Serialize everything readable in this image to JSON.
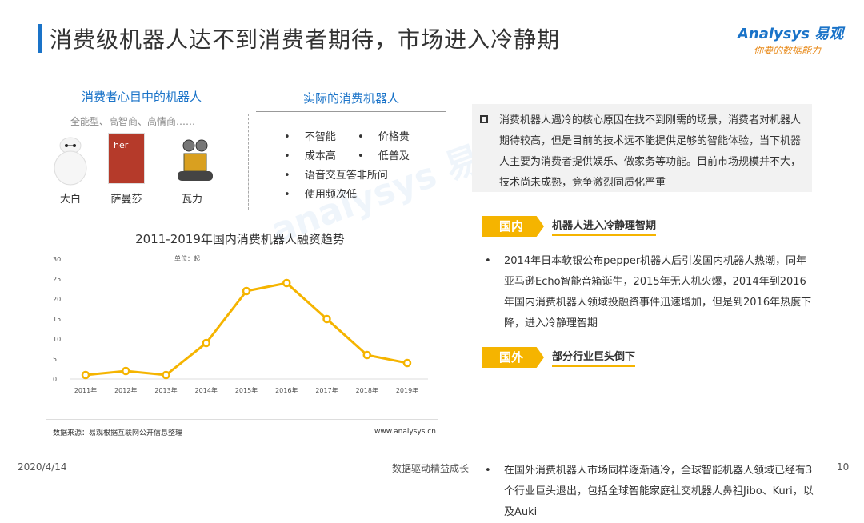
{
  "header": {
    "title": "消费级机器人达不到消费者期待，市场进入冷静期",
    "logo_line1": "Analysys 易观",
    "logo_line2": "你要的数据能力"
  },
  "left": {
    "ideal_heading": "消费者心目中的机器人",
    "ideal_sub": "全能型、高智商、高情商……",
    "robots": [
      {
        "name": "大白"
      },
      {
        "name": "萨曼莎",
        "poster_text": "her"
      },
      {
        "name": "瓦力"
      }
    ],
    "actual_heading": "实际的消费机器人",
    "actual_items": [
      "不智能",
      "价格贵",
      "成本高",
      "低普及",
      "语音交互答非所问",
      "使用频次低"
    ]
  },
  "note": "消费机器人遇冷的核心原因在找不到刚需的场景，消费者对机器人期待较高，但是目前的技术远不能提供足够的智能体验，当下机器人主要为消费者提供娱乐、做家务等功能。目前市场规模并不大，技术尚未成熟，竞争激烈同质化严重",
  "domestic": {
    "tag": "国内",
    "title": "机器人进入冷静理智期",
    "text": "2014年日本软银公布pepper机器人后引发国内机器人热潮，同年亚马逊Echo智能音箱诞生，2015年无人机火爆，2014年到2016年国内消费机器人领域投融资事件迅速增加，但是到2016年热度下降，进入冷静理智期"
  },
  "foreign": {
    "tag": "国外",
    "title": "部分行业巨头倒下",
    "text": "在国外消费机器人市场同样逐渐遇冷，全球智能机器人领域已经有3个行业巨头退出，包括全球智能家庭社交机器人鼻祖Jibo、Kuri，以及Auki"
  },
  "chart_data": {
    "type": "line",
    "title": "2011-2019年国内消费机器人融资趋势",
    "unit": "单位：起",
    "categories": [
      "2011年",
      "2012年",
      "2013年",
      "2014年",
      "2015年",
      "2016年",
      "2017年",
      "2018年",
      "2019年"
    ],
    "values": [
      1,
      2,
      1,
      9,
      22,
      24,
      15,
      6,
      4
    ],
    "ylim": [
      0,
      30
    ],
    "yticks": [
      0,
      5,
      10,
      15,
      20,
      25,
      30
    ],
    "color": "#f5b400",
    "grid": false,
    "source": "数据来源：易观根据互联网公开信息整理",
    "site": "www.analysys.cn"
  },
  "footer": {
    "date": "2020/4/14",
    "slogan": "数据驱动精益成长",
    "page": "10"
  },
  "colors": {
    "accent": "#1a73c8",
    "highlight": "#f5b400"
  }
}
